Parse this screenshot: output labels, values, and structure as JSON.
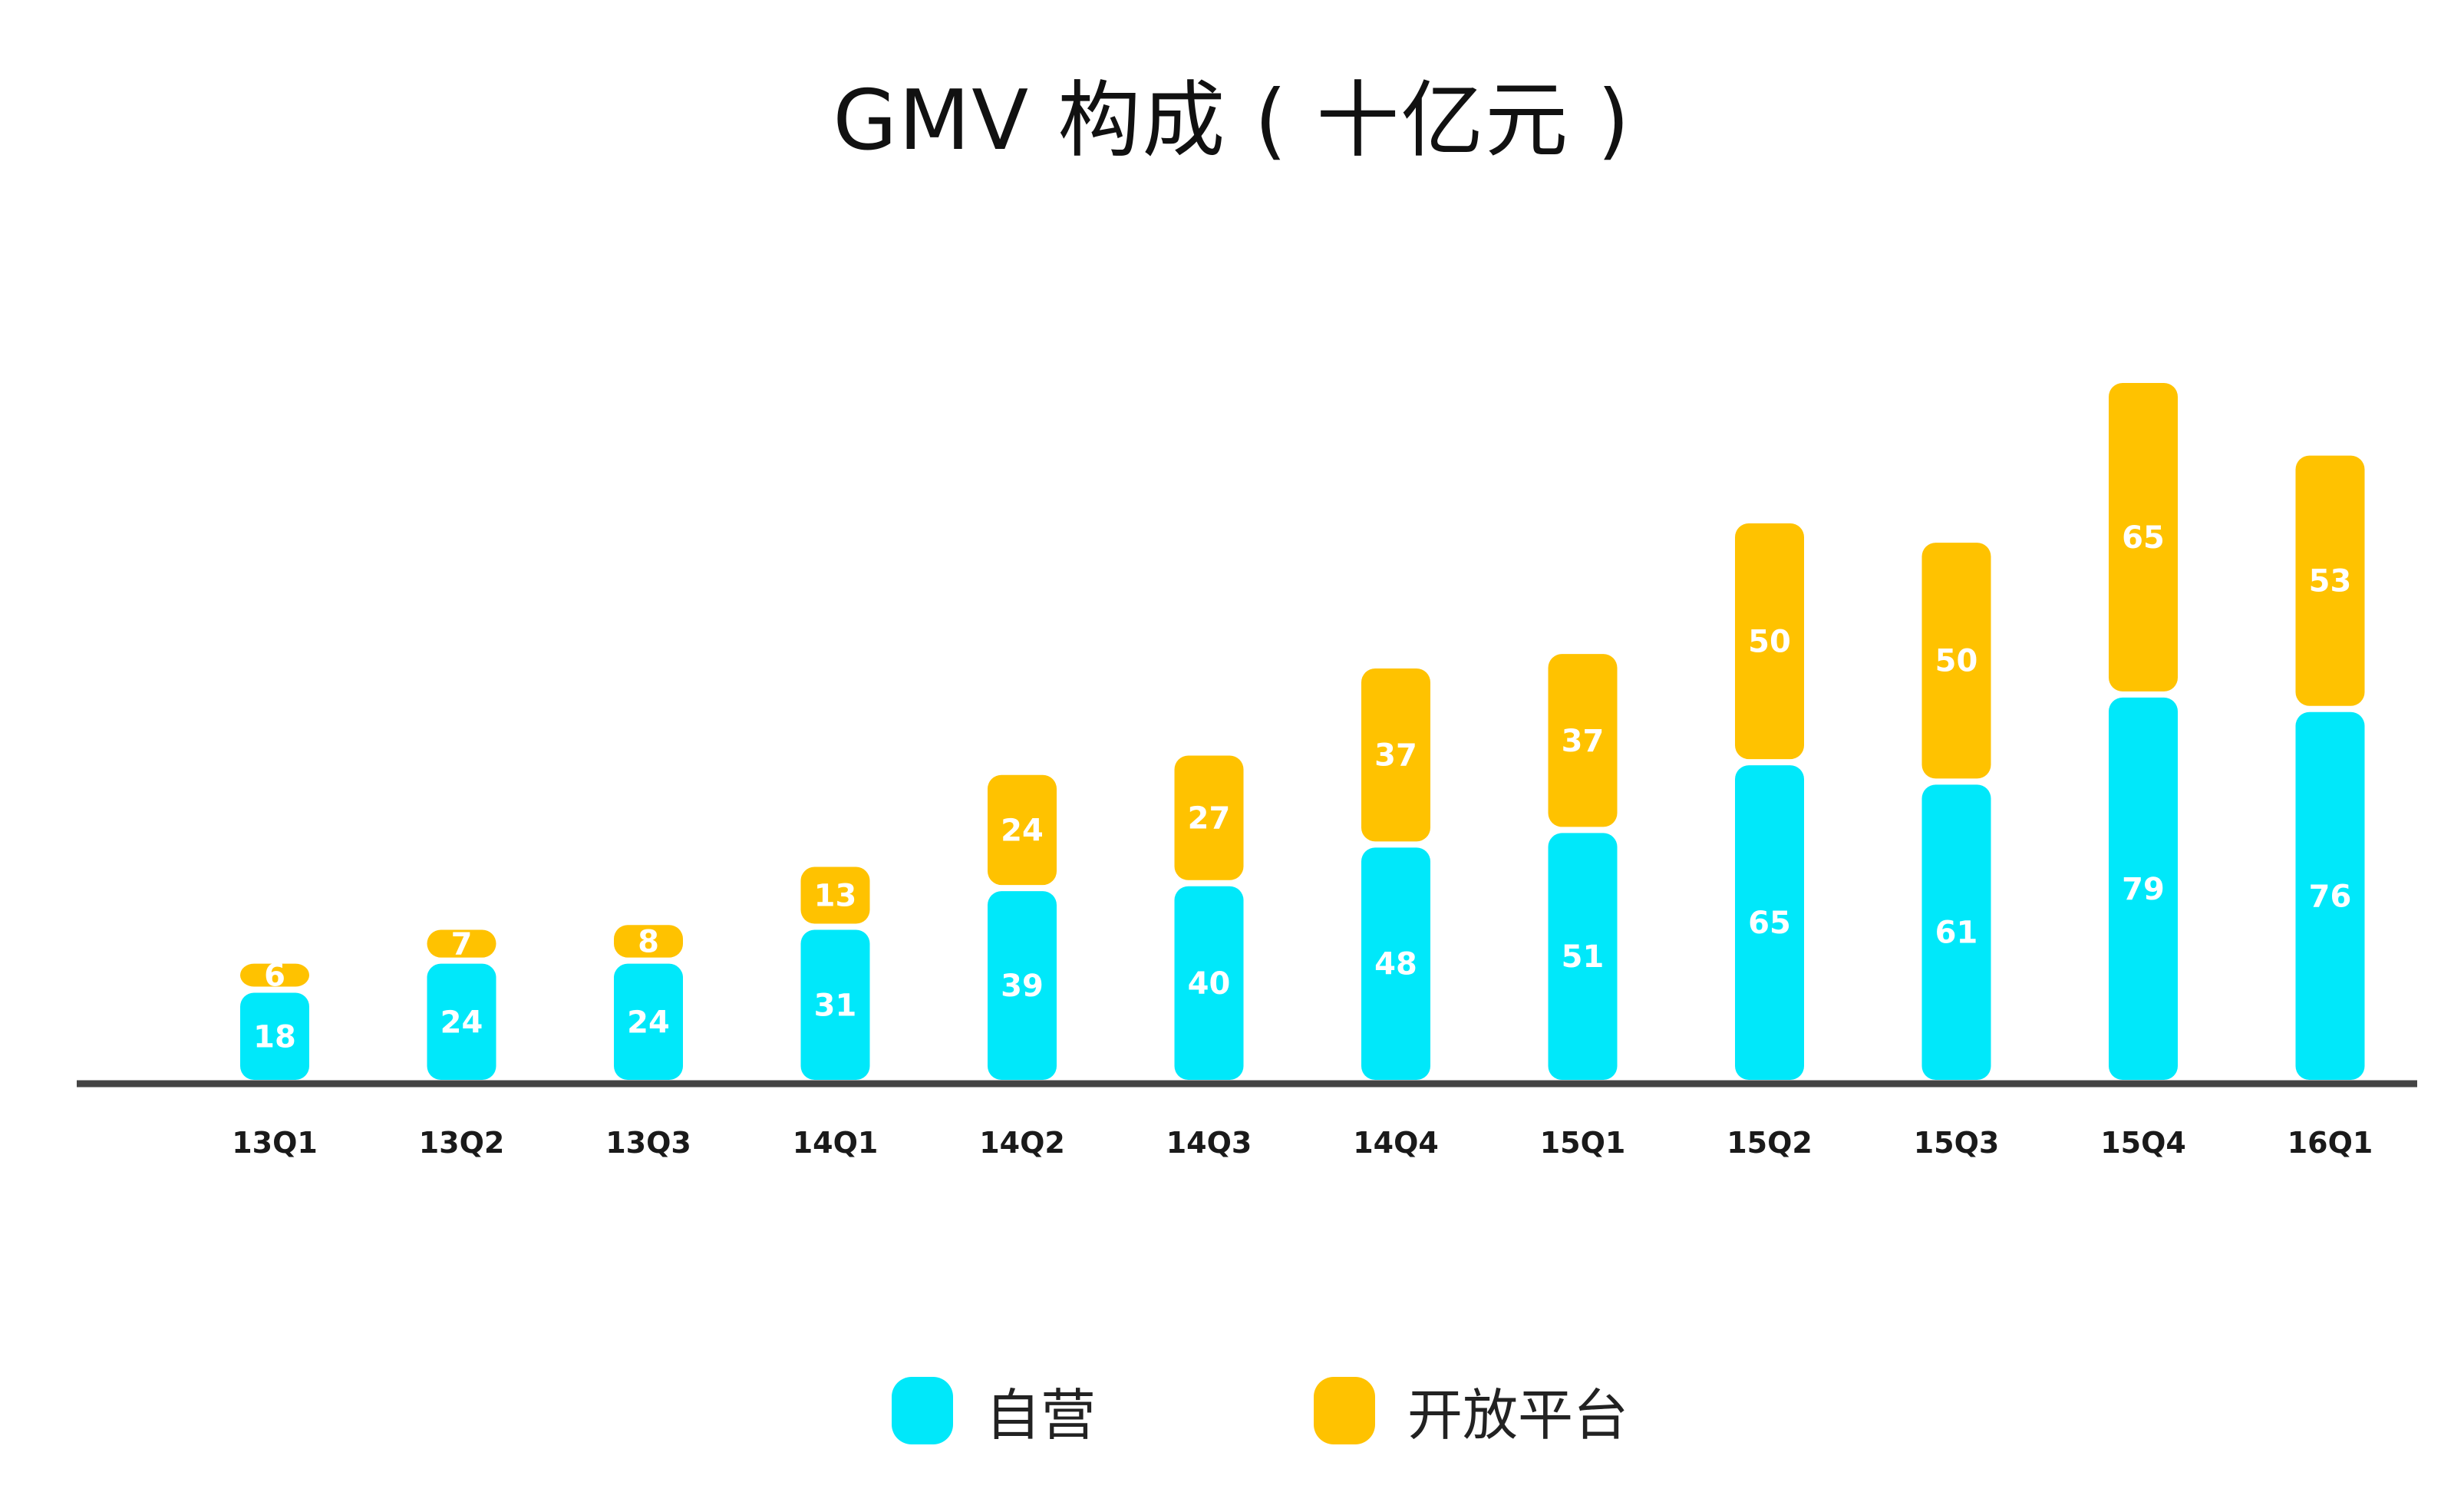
{
  "chart_data": {
    "type": "bar",
    "stacked": true,
    "title": "GMV 构成 ( 十亿元 )",
    "xlabel": "",
    "ylabel": "",
    "categories": [
      "13Q1",
      "13Q2",
      "13Q3",
      "14Q1",
      "14Q2",
      "14Q3",
      "14Q4",
      "15Q1",
      "15Q2",
      "15Q3",
      "15Q4",
      "16Q1"
    ],
    "series": [
      {
        "name": "自营",
        "color": "#00E8FA",
        "values": [
          18,
          24,
          24,
          31,
          39,
          40,
          48,
          51,
          65,
          61,
          79,
          76
        ]
      },
      {
        "name": "开放平台",
        "color": "#FFC200",
        "values": [
          6,
          7,
          8,
          13,
          24,
          27,
          37,
          37,
          50,
          50,
          65,
          53
        ]
      }
    ],
    "ylim": [
      0,
      144
    ],
    "grid": false,
    "legend_position": "bottom-center",
    "axis_color": "#444444"
  }
}
